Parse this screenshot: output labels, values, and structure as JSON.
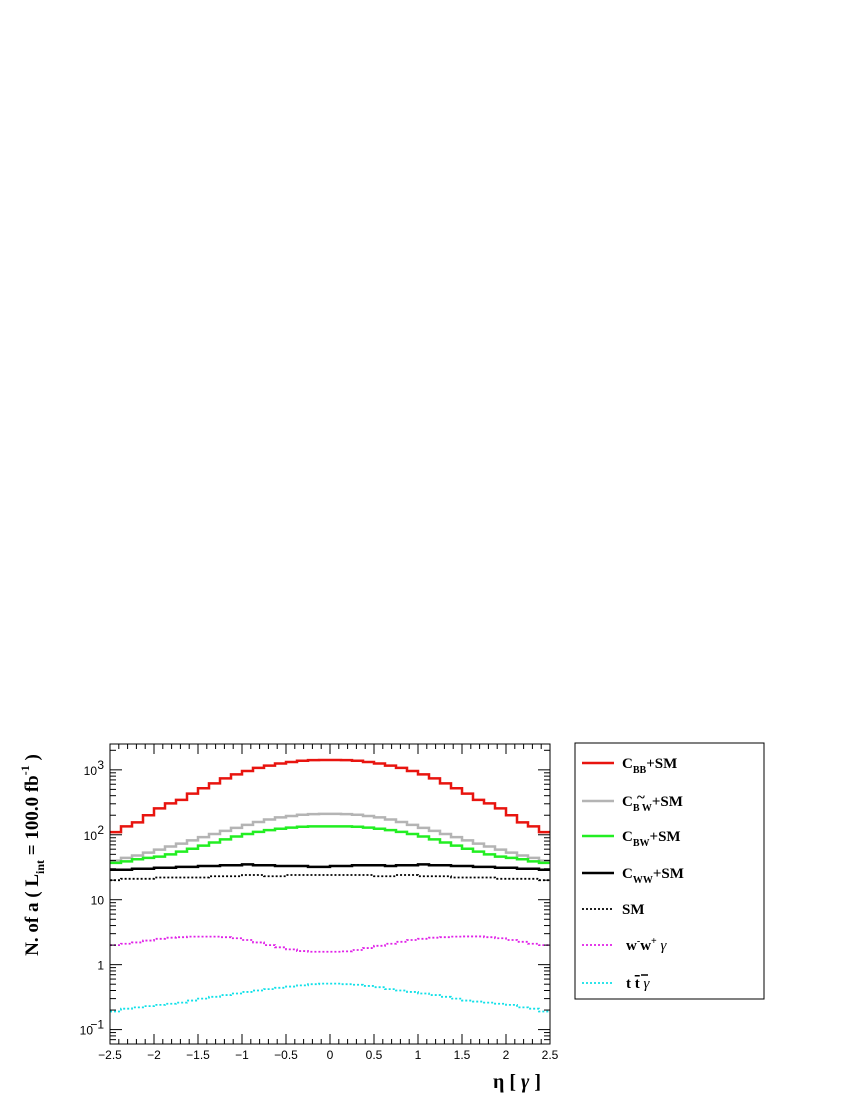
{
  "chart_data": {
    "type": "line",
    "step": true,
    "xlabel_parts": {
      "main": "η",
      "bracket_open": "[",
      "var": "γ",
      "bracket_close": "]"
    },
    "ylabel_parts": {
      "prefix": "N. of a ( L",
      "sub": "int",
      "mid": " = 100.0 fb",
      "sup": "-1",
      "suffix": " )"
    },
    "xlim": [
      -2.5,
      2.5
    ],
    "ylim": [
      0.06,
      2500
    ],
    "log_y": true,
    "grid": false,
    "legend_position": "right",
    "x_ticks": [
      "−2.5",
      "−2",
      "−1.5",
      "−1",
      "−0.5",
      "0",
      "0.5",
      "1",
      "1.5",
      "2",
      "2.5"
    ],
    "y_ticks": [
      {
        "value": 0.1,
        "base": "10",
        "exp": "−1"
      },
      {
        "value": 1,
        "base": "1",
        "exp": ""
      },
      {
        "value": 10,
        "base": "10",
        "exp": ""
      },
      {
        "value": 100,
        "base": "10",
        "exp": "2"
      },
      {
        "value": 1000,
        "base": "10",
        "exp": "3"
      }
    ],
    "bins": {
      "count": 40,
      "min": -2.5,
      "max": 2.5
    },
    "series": [
      {
        "legend": {
          "main": "C",
          "sub": "BB",
          "tilde": "",
          "tail": "+SM"
        },
        "color": "#e8140f",
        "dash": "solid",
        "width": 2.5,
        "values": [
          110,
          135,
          155,
          200,
          255,
          305,
          345,
          430,
          520,
          620,
          740,
          850,
          960,
          1070,
          1160,
          1250,
          1320,
          1380,
          1410,
          1420,
          1420,
          1410,
          1380,
          1320,
          1250,
          1160,
          1070,
          960,
          850,
          740,
          620,
          520,
          430,
          345,
          305,
          255,
          200,
          155,
          135,
          110
        ]
      },
      {
        "legend": {
          "main": "C",
          "sub": "B W",
          "tilde": "~",
          "tail": "+SM"
        },
        "color": "#b4b4b4",
        "dash": "solid",
        "width": 2.5,
        "values": [
          40,
          44,
          48,
          53,
          59,
          66,
          73,
          82,
          92,
          103,
          115,
          128,
          142,
          157,
          172,
          185,
          195,
          203,
          208,
          210,
          210,
          208,
          203,
          195,
          185,
          172,
          157,
          142,
          128,
          115,
          103,
          92,
          82,
          73,
          66,
          59,
          53,
          48,
          44,
          40
        ]
      },
      {
        "legend": {
          "main": "C",
          "sub": "BW",
          "tilde": "",
          "tail": "+SM"
        },
        "color": "#22ee22",
        "dash": "solid",
        "width": 2.5,
        "values": [
          37,
          39,
          42,
          44,
          46,
          50,
          55,
          61,
          68,
          76,
          85,
          94,
          103,
          111,
          118,
          124,
          129,
          133,
          135,
          135,
          135,
          135,
          133,
          129,
          124,
          118,
          111,
          103,
          94,
          85,
          76,
          68,
          61,
          55,
          50,
          46,
          44,
          42,
          39,
          37
        ]
      },
      {
        "legend": {
          "main": "C",
          "sub": "WW",
          "tilde": "",
          "tail": "+SM"
        },
        "color": "#000000",
        "dash": "solid",
        "width": 2.5,
        "values": [
          29,
          29,
          30,
          30,
          31,
          31,
          32,
          32,
          33,
          33,
          34,
          34,
          35,
          34,
          34,
          33,
          33,
          33,
          32,
          32,
          33,
          33,
          34,
          34,
          34,
          33,
          34,
          34,
          35,
          34,
          34,
          33,
          33,
          32,
          32,
          31,
          31,
          30,
          30,
          29
        ]
      },
      {
        "legend": {
          "main": "SM",
          "sub": "",
          "tilde": "",
          "tail": ""
        },
        "color": "#000000",
        "dash": "dotted",
        "width": 1.8,
        "values": [
          20,
          21,
          21,
          21,
          22,
          22,
          22,
          22,
          22,
          23,
          23,
          23,
          24,
          24,
          23,
          23,
          24,
          24,
          24,
          24,
          24,
          24,
          24,
          24,
          23,
          23,
          24,
          24,
          23,
          23,
          23,
          22,
          22,
          22,
          22,
          21,
          21,
          21,
          21,
          20
        ]
      },
      {
        "legend": {
          "main": "w",
          "sup1": "-",
          "main2": "w",
          "sup2": "+",
          "tail": "  γ",
          "kind": "ww"
        },
        "color": "#e020e8",
        "dash": "dotted",
        "width": 1.8,
        "values": [
          2.0,
          2.1,
          2.2,
          2.35,
          2.5,
          2.6,
          2.65,
          2.7,
          2.7,
          2.7,
          2.65,
          2.55,
          2.4,
          2.2,
          2.0,
          1.85,
          1.72,
          1.62,
          1.58,
          1.58,
          1.58,
          1.6,
          1.68,
          1.8,
          1.95,
          2.1,
          2.25,
          2.4,
          2.5,
          2.6,
          2.65,
          2.7,
          2.72,
          2.72,
          2.65,
          2.55,
          2.4,
          2.25,
          2.1,
          2.0
        ]
      },
      {
        "legend": {
          "main": "t",
          "bar": "t",
          "tail": "γ",
          "kind": "tt"
        },
        "color": "#10e0e8",
        "dash": "dotted",
        "width": 1.8,
        "values": [
          0.19,
          0.21,
          0.22,
          0.23,
          0.24,
          0.25,
          0.26,
          0.28,
          0.3,
          0.32,
          0.34,
          0.36,
          0.38,
          0.4,
          0.42,
          0.44,
          0.46,
          0.48,
          0.5,
          0.51,
          0.51,
          0.5,
          0.49,
          0.47,
          0.45,
          0.42,
          0.4,
          0.38,
          0.36,
          0.34,
          0.32,
          0.3,
          0.28,
          0.27,
          0.26,
          0.25,
          0.24,
          0.22,
          0.21,
          0.19
        ]
      }
    ]
  }
}
